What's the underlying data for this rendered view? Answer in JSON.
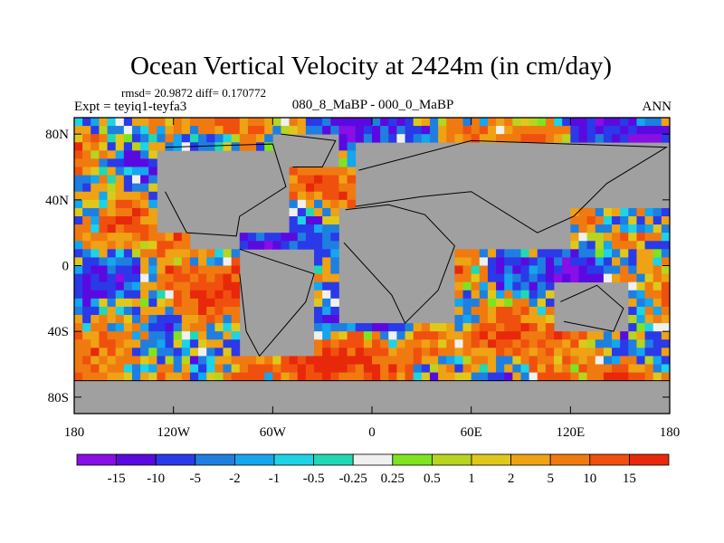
{
  "chart_data": {
    "type": "heatmap",
    "title": "Ocean Vertical Velocity at 2424m (in cm/day)",
    "stats_line": "rmsd= 20.9872 diff= 0.170772",
    "left_label": "Expt = teyiq1-teyfa3",
    "center_label": "080_8_MaBP - 000_0_MaBP",
    "right_label": "ANN",
    "projection": "cylindrical equidistant",
    "x_range": [
      -180,
      180
    ],
    "y_range": [
      -90,
      90
    ],
    "x_ticks": [
      {
        "value": -180,
        "label": "180"
      },
      {
        "value": -120,
        "label": "120W"
      },
      {
        "value": -60,
        "label": "60W"
      },
      {
        "value": 0,
        "label": "0"
      },
      {
        "value": 60,
        "label": "60E"
      },
      {
        "value": 120,
        "label": "120E"
      },
      {
        "value": 180,
        "label": "180"
      }
    ],
    "y_ticks": [
      {
        "value": 80,
        "label": "80N"
      },
      {
        "value": 40,
        "label": "40N"
      },
      {
        "value": 0,
        "label": "0"
      },
      {
        "value": -40,
        "label": "40S"
      },
      {
        "value": -80,
        "label": "80S"
      }
    ],
    "levels": [
      "-15",
      "-10",
      "-5",
      "-2",
      "-1",
      "-0.5",
      "-0.25",
      "0.25",
      "0.5",
      "1",
      "2",
      "5",
      "10",
      "15"
    ],
    "colors": [
      "#8a0ee6",
      "#5a0ae0",
      "#2a3ae8",
      "#1f7fe0",
      "#14a6ee",
      "#1ed3e6",
      "#20d8b4",
      "#f0f0f0",
      "#7ee420",
      "#b8d41e",
      "#e0c81a",
      "#eea214",
      "#f07a10",
      "#f0500e",
      "#e8280a"
    ],
    "land_color": "#a0a0a0",
    "grid": {
      "nx": 72,
      "ny": 36,
      "resolution_deg": 5
    }
  }
}
